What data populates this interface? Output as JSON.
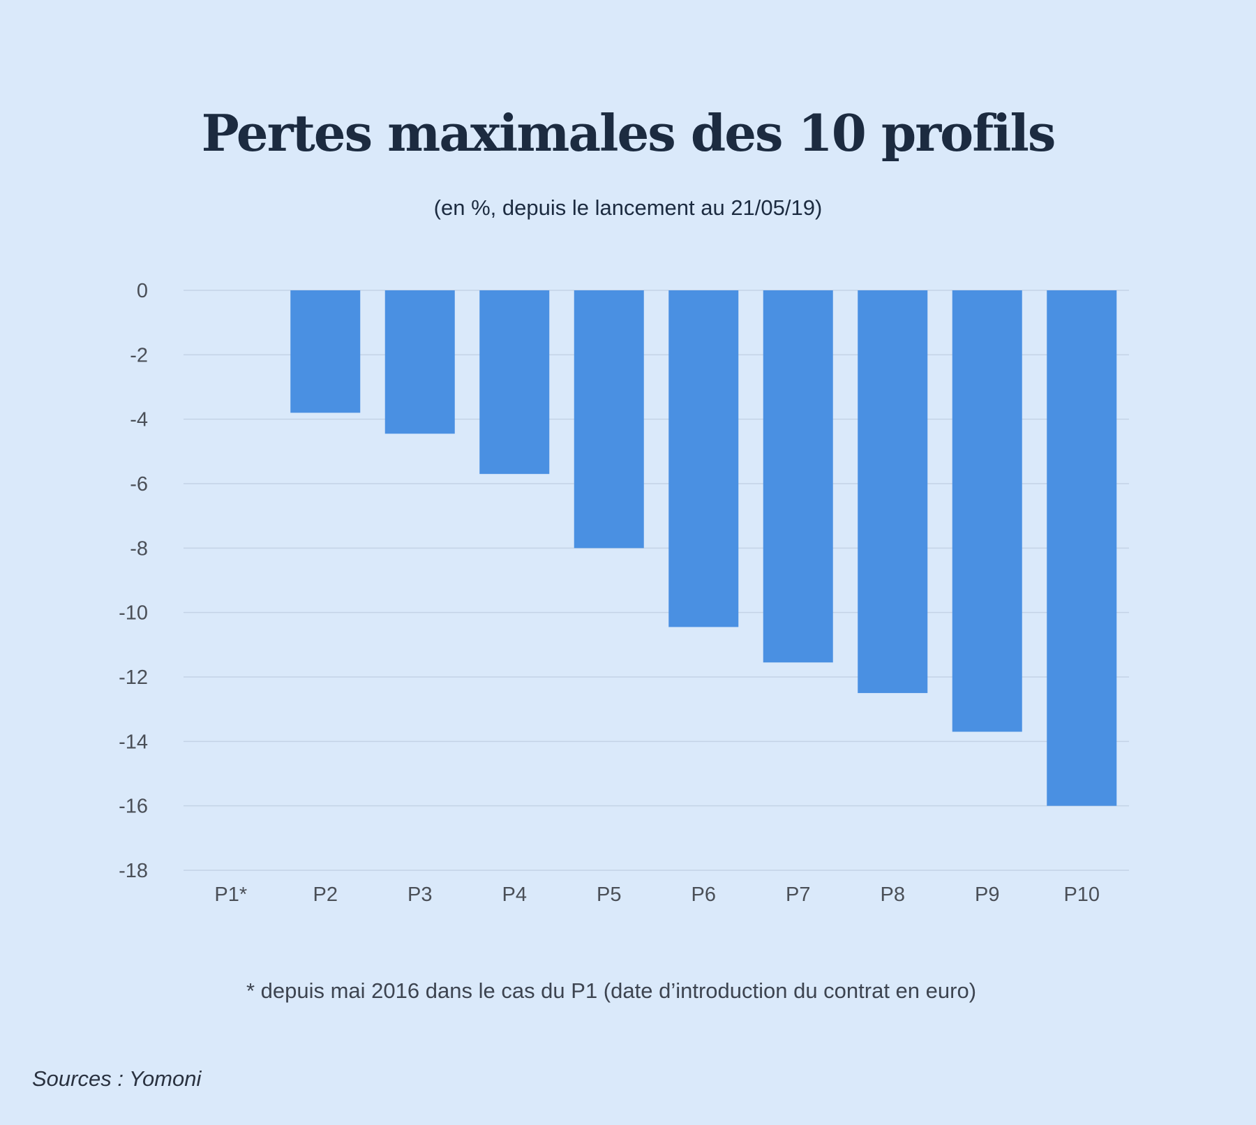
{
  "chart_data": {
    "type": "bar",
    "title": "Pertes maximales des 10 profils",
    "subtitle": "(en %, depuis le lancement au 21/05/19)",
    "categories": [
      "P1*",
      "P2",
      "P3",
      "P4",
      "P5",
      "P6",
      "P7",
      "P8",
      "P9",
      "P10"
    ],
    "values": [
      0,
      -3.8,
      -4.45,
      -5.7,
      -8.0,
      -10.45,
      -11.55,
      -12.5,
      -13.7,
      -16.0
    ],
    "ylim": [
      -18,
      0
    ],
    "yticks": [
      "0",
      "-2",
      "-4",
      "-6",
      "-8",
      "-10",
      "-12",
      "-14",
      "-16",
      "-18"
    ],
    "ytick_values": [
      0,
      -2,
      -4,
      -6,
      -8,
      -10,
      -12,
      -14,
      -16,
      -18
    ],
    "grid": true,
    "xlabel": "",
    "ylabel": "",
    "bar_color": "#4a90e2",
    "grid_color": "#c3d3e6",
    "footnote": "* depuis mai 2016 dans le cas du P1 (date d’introduction du contrat en euro)",
    "source": "Sources : Yomoni"
  }
}
